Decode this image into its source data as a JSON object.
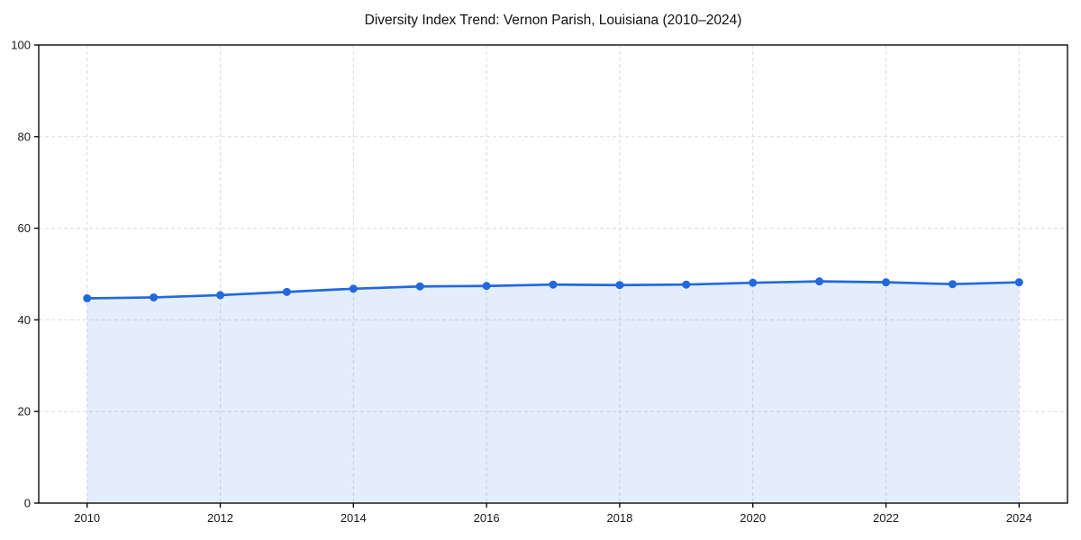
{
  "chart_data": {
    "type": "area",
    "title": "Diversity Index Trend: Vernon Parish, Louisiana (2010–2024)",
    "x": [
      2010,
      2011,
      2012,
      2013,
      2014,
      2015,
      2016,
      2017,
      2018,
      2019,
      2020,
      2021,
      2022,
      2023,
      2024
    ],
    "values": [
      44.7,
      44.9,
      45.4,
      46.1,
      46.8,
      47.3,
      47.4,
      47.7,
      47.6,
      47.7,
      48.1,
      48.4,
      48.2,
      47.8,
      48.2
    ],
    "xlabel": "",
    "ylabel": "",
    "ylim": [
      0,
      100
    ],
    "yticks": [
      0,
      20,
      40,
      60,
      80,
      100
    ],
    "xticks": [
      2010,
      2012,
      2014,
      2016,
      2018,
      2020,
      2022,
      2024
    ],
    "grid": true,
    "legend": "none",
    "line_color": "#2268df",
    "marker_color": "#2268df",
    "fill_color": "#2268df",
    "fill_opacity": 0.12,
    "grid_color": "#dcdcdc",
    "spine_color": "#0a0a0a",
    "background_color": "#ffffff"
  }
}
